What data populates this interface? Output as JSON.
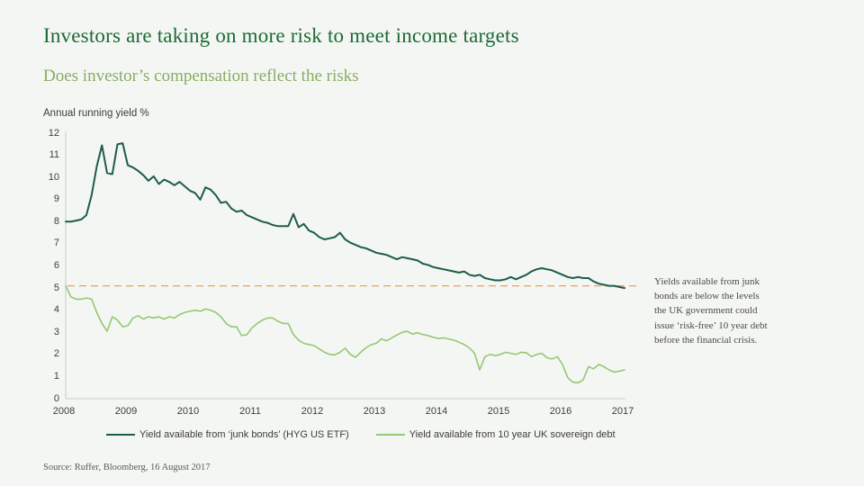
{
  "slide": {
    "title": "Investors are taking on more risk to meet income targets",
    "subtitle": "Does investor’s compensation reflect the risks",
    "source": "Source: Ruffer, Bloomberg, 16 August 2017"
  },
  "annotation": {
    "text": "Yields available from junk bonds are below the levels the UK government could issue ‘risk-free’ 10 year debt before the financial crisis."
  },
  "colors": {
    "background": "#f4f6f3",
    "title_green": "#1c6a36",
    "subtitle_green": "#89ad62",
    "axis_gray": "#c8ccc8",
    "chart_text": "#3d3d3d"
  },
  "chart_data": {
    "type": "line",
    "title": "Annual running yield %",
    "xlabel": "",
    "ylabel": "Annual running yield %",
    "ylim": [
      0,
      12
    ],
    "grid": false,
    "legend_position": "bottom",
    "x_ticks": [
      "2008",
      "2009",
      "2010",
      "2011",
      "2012",
      "2013",
      "2014",
      "2015",
      "2016",
      "2017"
    ],
    "y_ticks": [
      0,
      1,
      2,
      3,
      4,
      5,
      6,
      7,
      8,
      9,
      10,
      11,
      12
    ],
    "x_unit": "monthly from January 2008 to January 2017",
    "reference_line": {
      "label": "pre-crisis UK 10 year gilt yield level",
      "value": 5.1,
      "style": "dashed",
      "color": "#e8a25c"
    },
    "series": [
      {
        "name": "Yield available from ‘junk bonds’ (HYG US ETF)",
        "color": "#1d5c4a",
        "width": 2,
        "values": [
          8.0,
          8.0,
          8.05,
          8.1,
          8.3,
          9.2,
          10.5,
          11.45,
          10.2,
          10.15,
          11.5,
          11.55,
          10.55,
          10.45,
          10.3,
          10.1,
          9.85,
          10.05,
          9.7,
          9.9,
          9.8,
          9.65,
          9.8,
          9.6,
          9.4,
          9.3,
          9.0,
          9.55,
          9.45,
          9.2,
          8.85,
          8.9,
          8.6,
          8.45,
          8.5,
          8.3,
          8.2,
          8.1,
          8.0,
          7.95,
          7.85,
          7.8,
          7.8,
          7.8,
          8.35,
          7.75,
          7.9,
          7.6,
          7.5,
          7.3,
          7.2,
          7.25,
          7.3,
          7.5,
          7.2,
          7.05,
          6.95,
          6.85,
          6.8,
          6.7,
          6.6,
          6.55,
          6.5,
          6.4,
          6.3,
          6.4,
          6.35,
          6.3,
          6.25,
          6.1,
          6.05,
          5.95,
          5.9,
          5.85,
          5.8,
          5.75,
          5.7,
          5.75,
          5.6,
          5.55,
          5.6,
          5.45,
          5.4,
          5.35,
          5.35,
          5.4,
          5.5,
          5.4,
          5.5,
          5.6,
          5.75,
          5.85,
          5.9,
          5.85,
          5.8,
          5.7,
          5.6,
          5.5,
          5.45,
          5.5,
          5.45,
          5.45,
          5.3,
          5.2,
          5.15,
          5.1,
          5.1,
          5.05,
          5.0
        ]
      },
      {
        "name": "Yield available from 10 year UK sovereign debt",
        "color": "#95c873",
        "width": 1.6,
        "values": [
          5.1,
          4.6,
          4.5,
          4.5,
          4.55,
          4.5,
          3.9,
          3.4,
          3.05,
          3.7,
          3.55,
          3.25,
          3.3,
          3.65,
          3.75,
          3.6,
          3.7,
          3.65,
          3.7,
          3.6,
          3.7,
          3.65,
          3.8,
          3.9,
          3.95,
          4.0,
          3.95,
          4.05,
          4.0,
          3.9,
          3.7,
          3.4,
          3.25,
          3.25,
          2.85,
          2.9,
          3.2,
          3.4,
          3.55,
          3.65,
          3.65,
          3.5,
          3.4,
          3.4,
          2.9,
          2.65,
          2.5,
          2.45,
          2.4,
          2.25,
          2.1,
          2.0,
          1.98,
          2.1,
          2.28,
          2.0,
          1.87,
          2.1,
          2.3,
          2.44,
          2.5,
          2.7,
          2.62,
          2.75,
          2.88,
          3.0,
          3.05,
          2.92,
          2.98,
          2.9,
          2.85,
          2.78,
          2.72,
          2.75,
          2.7,
          2.65,
          2.55,
          2.45,
          2.3,
          2.05,
          1.3,
          1.9,
          2.0,
          1.95,
          2.0,
          2.1,
          2.05,
          2.0,
          2.1,
          2.08,
          1.9,
          2.0,
          2.05,
          1.85,
          1.8,
          1.9,
          1.55,
          0.95,
          0.75,
          0.72,
          0.85,
          1.45,
          1.35,
          1.55,
          1.45,
          1.3,
          1.2,
          1.25,
          1.3
        ]
      }
    ]
  }
}
